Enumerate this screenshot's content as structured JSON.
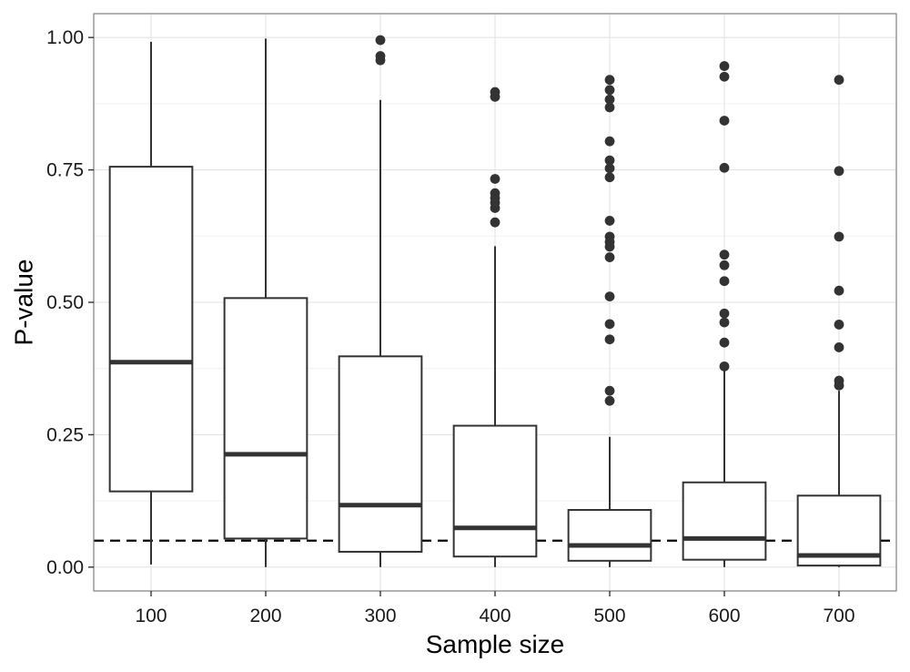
{
  "chart_data": {
    "type": "box",
    "xlabel": "Sample size",
    "ylabel": "P-value",
    "categories": [
      "100",
      "200",
      "300",
      "400",
      "500",
      "600",
      "700"
    ],
    "ylim": [
      -0.045,
      1.045
    ],
    "yticks": [
      0.0,
      0.25,
      0.5,
      0.75,
      1.0
    ],
    "yticklabels": [
      "0.00",
      "0.25",
      "0.50",
      "0.75",
      "1.00"
    ],
    "grid": true,
    "reference_line": {
      "y": 0.05,
      "style": "dashed"
    },
    "boxes": [
      {
        "category": "100",
        "whisker_low": 0.005,
        "q1": 0.143,
        "median": 0.387,
        "q3": 0.756,
        "whisker_high": 0.992,
        "outliers": []
      },
      {
        "category": "200",
        "whisker_low": 0.0,
        "q1": 0.054,
        "median": 0.213,
        "q3": 0.508,
        "whisker_high": 0.998,
        "outliers": []
      },
      {
        "category": "300",
        "whisker_low": 0.0,
        "q1": 0.029,
        "median": 0.117,
        "q3": 0.398,
        "whisker_high": 0.882,
        "outliers": [
          0.995,
          0.965,
          0.957
        ]
      },
      {
        "category": "400",
        "whisker_low": 0.0,
        "q1": 0.02,
        "median": 0.074,
        "q3": 0.267,
        "whisker_high": 0.606,
        "outliers": [
          0.897,
          0.888,
          0.733,
          0.706,
          0.697,
          0.688,
          0.678,
          0.651
        ]
      },
      {
        "category": "500",
        "whisker_low": 0.0,
        "q1": 0.012,
        "median": 0.041,
        "q3": 0.108,
        "whisker_high": 0.246,
        "outliers": [
          0.92,
          0.901,
          0.883,
          0.868,
          0.804,
          0.768,
          0.753,
          0.736,
          0.654,
          0.624,
          0.614,
          0.605,
          0.585,
          0.511,
          0.459,
          0.43,
          0.333,
          0.314
        ]
      },
      {
        "category": "600",
        "whisker_low": 0.0,
        "q1": 0.014,
        "median": 0.054,
        "q3": 0.16,
        "whisker_high": 0.371,
        "outliers": [
          0.946,
          0.926,
          0.843,
          0.754,
          0.59,
          0.57,
          0.54,
          0.479,
          0.462,
          0.424,
          0.379
        ]
      },
      {
        "category": "700",
        "whisker_low": 0.0,
        "q1": 0.003,
        "median": 0.022,
        "q3": 0.135,
        "whisker_high": 0.333,
        "outliers": [
          0.92,
          0.748,
          0.624,
          0.522,
          0.458,
          0.415,
          0.352,
          0.343
        ]
      }
    ]
  }
}
